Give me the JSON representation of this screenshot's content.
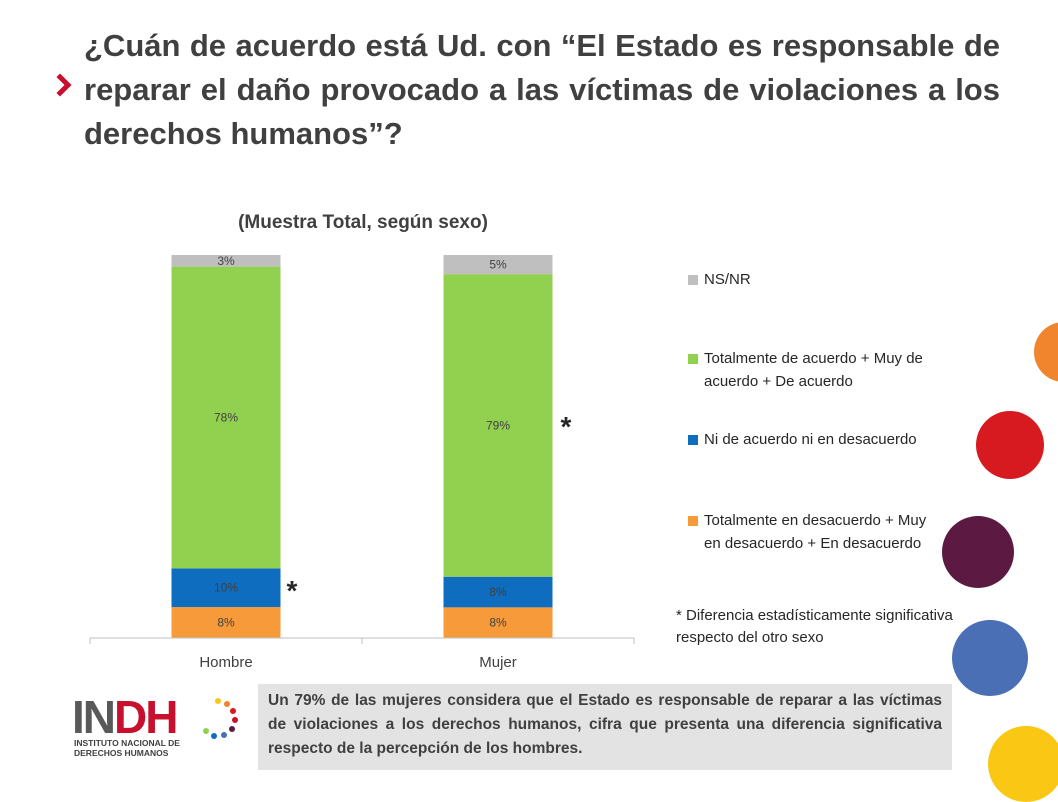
{
  "title": "¿Cuán de acuerdo está Ud. con “El Estado es responsable de reparar el daño provocado a las víctimas de violaciones a los derechos humanos”?",
  "chart_data": {
    "type": "bar",
    "stacked": true,
    "title": "(Muestra Total, según sexo)",
    "categories": [
      "Hombre",
      "Mujer"
    ],
    "series": [
      {
        "name": "Totalmente en desacuerdo + Muy en desacuerdo + En desacuerdo",
        "values": [
          8,
          8
        ],
        "labels": [
          "8%",
          "8%"
        ],
        "color": "#f79a3a"
      },
      {
        "name": "Ni de acuerdo ni en desacuerdo",
        "values": [
          10,
          8
        ],
        "labels": [
          "10%",
          "8%"
        ],
        "color": "#0e6dbe"
      },
      {
        "name": "Totalmente de acuerdo + Muy de acuerdo + De acuerdo",
        "values": [
          78,
          79
        ],
        "labels": [
          "78%",
          "79%"
        ],
        "color": "#92d050"
      },
      {
        "name": "NS/NR",
        "values": [
          3,
          5
        ],
        "labels": [
          "3%",
          "5%"
        ],
        "color": "#bfbfbf"
      }
    ],
    "significance_markers": [
      "*",
      "*"
    ],
    "legend_position": "right",
    "grid": false
  },
  "footnote": "* Diferencia estadísticamente significativa respecto del otro sexo",
  "summary": "Un 79% de las mujeres considera que el Estado es responsable de reparar a las víctimas de violaciones a los derechos humanos, cifra que presenta una diferencia significativa respecto de la percepción de los hombres.",
  "logo": {
    "letters": [
      "IN",
      "D",
      "H"
    ],
    "subtitle_line1": "INSTITUTO NACIONAL DE",
    "subtitle_line2": "DERECHOS HUMANOS",
    "colors": {
      "gray": "#595959",
      "red": "#c8102e"
    }
  },
  "colors": {
    "accent_arrow": "#c8102e",
    "deco_circles": [
      "#f0852d",
      "#d71920",
      "#5c1a43",
      "#4a6fb5",
      "#fbc715"
    ]
  }
}
